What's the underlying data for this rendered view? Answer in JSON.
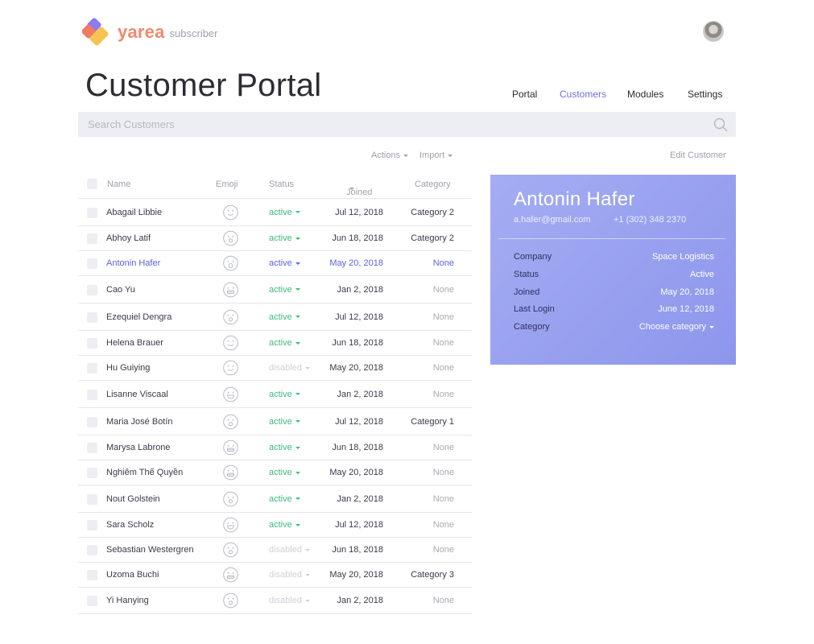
{
  "app": {
    "brand": "yarea",
    "subtitle": "subscriber"
  },
  "page": {
    "title": "Customer Portal"
  },
  "nav": {
    "items": [
      {
        "label": "Portal",
        "active": false
      },
      {
        "label": "Customers",
        "active": true
      },
      {
        "label": "Modules",
        "active": false
      },
      {
        "label": "Settings",
        "active": false
      }
    ]
  },
  "search": {
    "placeholder": "Search Customers",
    "value": ""
  },
  "toolbar": {
    "actions_label": "Actions",
    "import_label": "Import",
    "edit_customer_label": "Edit Customer"
  },
  "table": {
    "headers": {
      "name": "Name",
      "emoji": "Emoji",
      "status": "Status",
      "joined": "Joined",
      "category": "Category"
    },
    "rows": [
      {
        "name": "Abagail Libbie",
        "emoji": "smile-icon",
        "status": "active",
        "joined": "Jul 12, 2018",
        "category": "Category 2",
        "selected": false
      },
      {
        "name": "Abhoy Latif",
        "emoji": "surprised-icon",
        "status": "active",
        "joined": "Jun 18, 2018",
        "category": "Category 2",
        "selected": false
      },
      {
        "name": "Antonin Hafer",
        "emoji": "shocked-icon",
        "status": "active",
        "joined": "May 20, 2018",
        "category": "None",
        "selected": true
      },
      {
        "name": "Cao Yu",
        "emoji": "grimace-icon",
        "status": "active",
        "joined": "Jan 2, 2018",
        "category": "None",
        "selected": false
      },
      {
        "name": "Ezequiel Dengra",
        "emoji": "surprised-icon",
        "status": "active",
        "joined": "Jul 12, 2018",
        "category": "None",
        "selected": false
      },
      {
        "name": "Helena Brauer",
        "emoji": "smile-icon",
        "status": "active",
        "joined": "Jun 18, 2018",
        "category": "None",
        "selected": false
      },
      {
        "name": "Hu Guiying",
        "emoji": "smile-icon",
        "status": "disabled",
        "joined": "May 20, 2018",
        "category": "None",
        "selected": false
      },
      {
        "name": "Lisanne Viscaal",
        "emoji": "grin-icon",
        "status": "active",
        "joined": "Jan 2, 2018",
        "category": "None",
        "selected": false
      },
      {
        "name": "Maria José Botín",
        "emoji": "surprised-icon",
        "status": "active",
        "joined": "Jul 12, 2018",
        "category": "Category 1",
        "selected": false
      },
      {
        "name": "Marysa Labrone",
        "emoji": "grimace-icon",
        "status": "active",
        "joined": "Jun 18, 2018",
        "category": "None",
        "selected": false
      },
      {
        "name": "Nghiêm Thế Quyền",
        "emoji": "grimace-icon",
        "status": "active",
        "joined": "May 20, 2018",
        "category": "None",
        "selected": false
      },
      {
        "name": "Nout Golstein",
        "emoji": "surprised-icon",
        "status": "active",
        "joined": "Jan 2, 2018",
        "category": "None",
        "selected": false
      },
      {
        "name": "Sara Scholz",
        "emoji": "grin-icon",
        "status": "active",
        "joined": "Jul 12, 2018",
        "category": "None",
        "selected": false
      },
      {
        "name": "Sebastian Westergren",
        "emoji": "surprised-icon",
        "status": "disabled",
        "joined": "Jun 18, 2018",
        "category": "None",
        "selected": false
      },
      {
        "name": "Uzoma Buchi",
        "emoji": "grimace-icon",
        "status": "disabled",
        "joined": "May 20, 2018",
        "category": "Category 3",
        "selected": false
      },
      {
        "name": "Yi Hanying",
        "emoji": "surprised-icon",
        "status": "disabled",
        "joined": "Jan 2, 2018",
        "category": "None",
        "selected": false
      }
    ]
  },
  "detail": {
    "name": "Antonin Hafer",
    "email": "a.hafer@gmail.com",
    "phone": "+1 (302) 348 2370",
    "fields": [
      {
        "label": "Company",
        "value": "Space Logistics"
      },
      {
        "label": "Status",
        "value": "Active"
      },
      {
        "label": "Joined",
        "value": "May 20, 2018"
      },
      {
        "label": "Last Login",
        "value": "June 12, 2018"
      },
      {
        "label": "Category",
        "value": "Choose category"
      }
    ]
  },
  "colors": {
    "accent": "#6b6fe0",
    "active": "#3dbb7a",
    "disabled": "#cfd1d6",
    "card": "#9aa2f0",
    "brand": "#f08a6e"
  }
}
